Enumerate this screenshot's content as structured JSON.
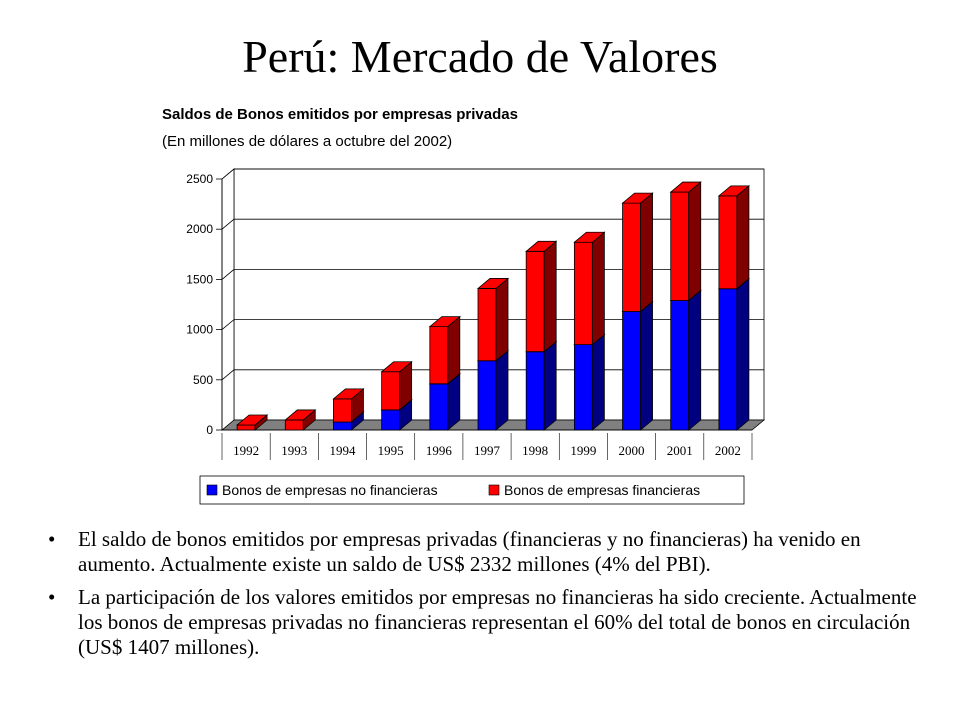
{
  "slide": {
    "title": "Perú: Mercado de Valores",
    "bullets": [
      "El saldo de bonos emitidos por empresas privadas (financieras y no financieras) ha venido en aumento. Actualmente existe un saldo de US$ 2332 millones (4% del PBI).",
      "La participación de los valores emitidos por empresas no financieras ha sido creciente. Actualmente los bonos de empresas privadas no financieras representan el 60% del total de bonos en circulación (US$ 1407 millones)."
    ],
    "bullet_glyph": "•"
  },
  "chart_data": {
    "type": "bar",
    "stacked": true,
    "three_d": true,
    "title": "Saldos de Bonos emitidos por empresas privadas",
    "subtitle": "(En millones de dólares a octubre del 2002)",
    "xlabel": "",
    "ylabel": "",
    "ylim": [
      0,
      2500
    ],
    "yticks": [
      0,
      500,
      1000,
      1500,
      2000,
      2500
    ],
    "grid": true,
    "legend_position": "bottom",
    "categories": [
      "1992",
      "1993",
      "1994",
      "1995",
      "1996",
      "1997",
      "1998",
      "1999",
      "2000",
      "2001",
      "2002"
    ],
    "series": [
      {
        "name": "Bonos de empresas no financieras",
        "color": "#0000ff",
        "values": [
          0,
          0,
          80,
          200,
          460,
          690,
          780,
          850,
          1180,
          1290,
          1407
        ]
      },
      {
        "name": "Bonos de empresas financieras",
        "color": "#ff0000",
        "values": [
          50,
          100,
          230,
          380,
          570,
          720,
          1000,
          1020,
          1080,
          1080,
          925
        ]
      }
    ]
  }
}
